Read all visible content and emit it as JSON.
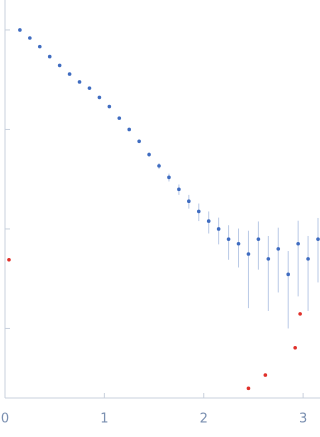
{
  "chart_data": {
    "type": "scatter",
    "log_y": true,
    "xlim": [
      0,
      3.17
    ],
    "xticks": [
      0,
      1,
      2,
      3
    ],
    "ylim": [
      0.0002,
      2
    ],
    "yticks": [
      1,
      0.1,
      0.01,
      0.001
    ],
    "axis_color": "#c8d0dc",
    "label_color": "#7a8fb0",
    "series": [
      {
        "color": "#3f6cc0",
        "error_color": "#b9c9e6",
        "x": [
          0.15,
          0.25,
          0.35,
          0.45,
          0.55,
          0.65,
          0.75,
          0.85,
          0.95,
          1.05,
          1.15,
          1.25,
          1.35,
          1.45,
          1.55,
          1.65,
          1.75,
          1.85,
          1.95,
          2.05,
          2.15,
          2.25,
          2.35,
          2.45,
          2.55,
          2.65,
          2.75,
          2.85,
          2.95,
          3.05,
          3.15
        ],
        "values": [
          1.0,
          0.83,
          0.68,
          0.54,
          0.44,
          0.36,
          0.3,
          0.26,
          0.21,
          0.17,
          0.13,
          0.1,
          0.076,
          0.056,
          0.043,
          0.033,
          0.025,
          0.019,
          0.015,
          0.012,
          0.01,
          0.0079,
          0.0071,
          0.0056,
          0.0079,
          0.005,
          0.0063,
          0.0035,
          0.0071,
          0.005,
          0.0079
        ],
        "errors": [
          0.02,
          0.015,
          0.012,
          0.01,
          0.008,
          0.007,
          0.006,
          0.005,
          0.005,
          0.004,
          0.004,
          0.003,
          0.003,
          0.003,
          0.003,
          0.003,
          0.003,
          0.003,
          0.003,
          0.003,
          0.003,
          0.003,
          0.003,
          0.004,
          0.004,
          0.0035,
          0.004,
          0.0025,
          0.005,
          0.0035,
          0.005
        ]
      },
      {
        "color": "#e0302a",
        "x": [
          0.04,
          2.45,
          2.62,
          2.92,
          2.97
        ],
        "values": [
          0.0049,
          0.00025,
          0.00034,
          0.00064,
          0.0014
        ]
      }
    ]
  }
}
